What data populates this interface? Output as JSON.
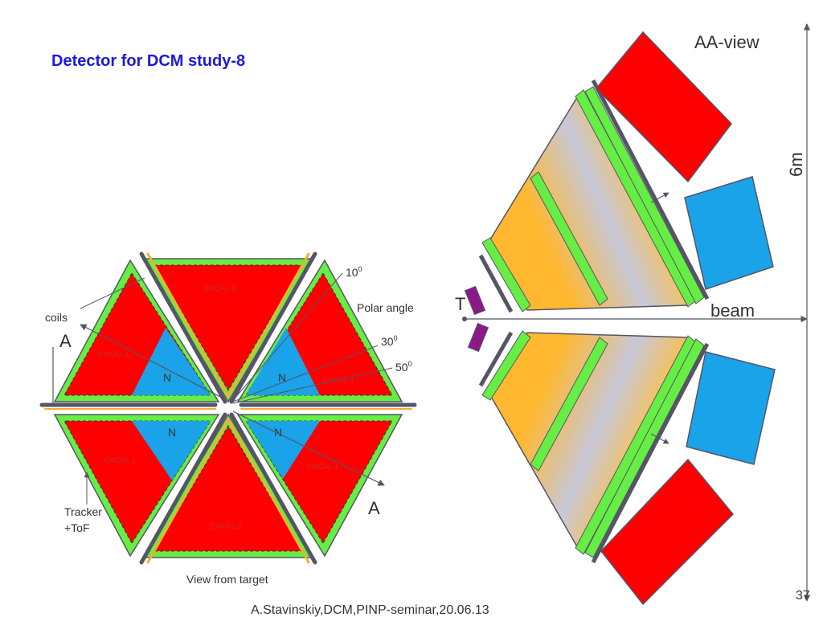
{
  "slide": {
    "title": "Detector for DCM study-8",
    "footer": "A.Stavinskiy,DCM,PINP-seminar,20.06.13",
    "page_number": "37"
  },
  "end_view": {
    "caption": "View from target",
    "coils_label": "coils",
    "tracker_label_line1": "Tracker",
    "tracker_label_line2": "+ToF",
    "section_label_a1": "A",
    "section_label_a2": "A",
    "polar_angle_label": "Polar angle",
    "angle_10": "10",
    "angle_30": "30",
    "angle_50": "50",
    "degree_sup": "0",
    "emcal_1": "EMCAL-1",
    "emcal_2": "EMCAL-2",
    "n_label": "N",
    "colors": {
      "emcal": "#ff0000",
      "frame": "#66ee44",
      "neutron": "#1aa3e8",
      "coil": "#f0b030",
      "outline": "#555566"
    }
  },
  "side_view": {
    "title": "AA-view",
    "beam_label": "beam",
    "target_label": "T",
    "scale_label": "6m",
    "colors": {
      "emcal": "#ff0000",
      "neutron": "#1aa3e8",
      "tracker": "#66ee44",
      "target_holder": "#8a1a8a",
      "gradient_orange": "#ffb830",
      "gradient_grey": "#c8c8d8"
    }
  }
}
